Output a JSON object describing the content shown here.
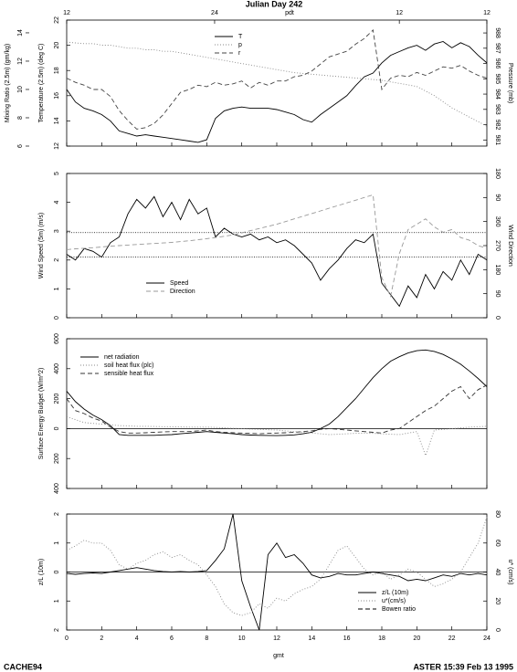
{
  "page": {
    "title": "Julian Day 242",
    "footer_left": "CACHE94",
    "footer_right": "ASTER 15:39 Feb 13 1995",
    "x_label": "gmt",
    "top_axis": {
      "label": "pdt",
      "ticks": [
        {
          "value": 0,
          "label": "12"
        },
        {
          "value": 8.45,
          "label": "24"
        },
        {
          "value": 19,
          "label": "12"
        },
        {
          "value": 24,
          "label": "12"
        }
      ]
    }
  },
  "chart_data": [
    {
      "type": "line",
      "xlim": [
        0,
        24
      ],
      "xticks": [
        0,
        2,
        4,
        6,
        8,
        10,
        12,
        14,
        16,
        18,
        20,
        22,
        24
      ],
      "xtick_labels": false,
      "legend": "top-center",
      "yaxes": [
        {
          "side": "left",
          "label": "Temperature (2.5m) (deg C)",
          "lim": [
            12,
            22
          ],
          "ticks": [
            12,
            14,
            16,
            18,
            20,
            22
          ]
        },
        {
          "side": "right",
          "label": "Pressure (mb)",
          "lim": [
            980.6,
            988.84
          ],
          "ticks": [
            981,
            982,
            983,
            984,
            985,
            986,
            987,
            988
          ]
        },
        {
          "side": "left",
          "label": "Mixing Ratio (2.5m) (gm/kg)",
          "lim": [
            6,
            14.9
          ],
          "ticks": [
            6,
            8,
            10,
            12,
            14
          ]
        }
      ],
      "x": [
        0,
        0.5,
        1,
        1.5,
        2,
        2.5,
        3,
        3.5,
        4,
        4.5,
        5,
        5.5,
        6,
        6.5,
        7,
        7.5,
        8,
        8.5,
        9,
        9.5,
        10,
        10.5,
        11,
        11.5,
        12,
        12.5,
        13,
        13.5,
        14,
        14.5,
        15,
        15.5,
        16,
        16.5,
        17,
        17.5,
        18,
        18.5,
        19,
        19.5,
        20,
        20.5,
        21,
        21.5,
        22,
        22.5,
        23,
        23.5,
        24
      ],
      "series": [
        {
          "name": "T",
          "color": "#000000",
          "style": "solid",
          "axis": 0,
          "values": [
            16.5,
            15.5,
            15.0,
            14.8,
            14.5,
            14.0,
            13.2,
            13.0,
            12.8,
            12.9,
            12.8,
            12.7,
            12.6,
            12.5,
            12.4,
            12.3,
            12.5,
            14.2,
            14.8,
            15.0,
            15.1,
            15.0,
            15.0,
            15.0,
            14.9,
            14.7,
            14.5,
            14.1,
            13.9,
            14.5,
            15.0,
            15.5,
            16.0,
            16.8,
            17.5,
            17.8,
            18.6,
            19.2,
            19.5,
            19.8,
            20.0,
            19.6,
            20.1,
            20.3,
            19.8,
            20.2,
            19.9,
            19.2,
            18.6
          ]
        },
        {
          "name": "p",
          "color": "#888888",
          "style": "dotted",
          "axis": 1,
          "values": [
            987.4,
            987.35,
            987.3,
            987.3,
            987.2,
            987.2,
            987.1,
            987.0,
            987.0,
            986.9,
            986.9,
            986.8,
            986.8,
            986.7,
            986.6,
            986.5,
            986.4,
            986.3,
            986.2,
            986.1,
            986.0,
            985.9,
            985.8,
            985.7,
            985.6,
            985.5,
            985.4,
            985.35,
            985.3,
            985.25,
            985.2,
            985.15,
            985.1,
            985.05,
            985.0,
            984.95,
            984.9,
            984.8,
            984.7,
            984.6,
            984.5,
            984.2,
            983.9,
            983.5,
            983.1,
            982.8,
            982.5,
            982.2,
            981.9
          ]
        },
        {
          "name": "r",
          "color": "#444444",
          "style": "dashed",
          "axis": 2,
          "values": [
            10.8,
            10.5,
            10.3,
            10.0,
            10.0,
            9.5,
            8.5,
            7.8,
            7.2,
            7.3,
            7.6,
            8.2,
            9.0,
            9.8,
            10.0,
            10.3,
            10.2,
            10.5,
            10.3,
            10.4,
            10.6,
            10.1,
            10.5,
            10.3,
            10.6,
            10.6,
            10.9,
            11.0,
            11.3,
            11.8,
            12.3,
            12.5,
            12.7,
            13.2,
            13.6,
            14.2,
            10.0,
            10.8,
            11.0,
            10.9,
            11.2,
            11.0,
            11.3,
            11.6,
            11.5,
            11.7,
            11.3,
            11.0,
            10.8
          ]
        }
      ]
    },
    {
      "type": "line",
      "xlim": [
        0,
        24
      ],
      "xticks": [
        0,
        2,
        4,
        6,
        8,
        10,
        12,
        14,
        16,
        18,
        20,
        22,
        24
      ],
      "xtick_labels": false,
      "legend": "bottom-left",
      "hlines": [
        2.1,
        2.95
      ],
      "yaxes": [
        {
          "side": "left",
          "label": "Wind Speed (5m) (m/s)",
          "lim": [
            0,
            5
          ],
          "ticks": [
            0,
            1,
            2,
            3,
            4,
            5
          ]
        },
        {
          "side": "right",
          "label": "Wind Direction",
          "lim": [
            0,
            540
          ],
          "ticks": [
            0,
            90,
            180,
            270,
            360,
            {
              "value": 450,
              "label": "90"
            },
            {
              "value": 540,
              "label": "180"
            }
          ]
        }
      ],
      "x": [
        0,
        0.5,
        1,
        1.5,
        2,
        2.5,
        3,
        3.5,
        4,
        4.5,
        5,
        5.5,
        6,
        6.5,
        7,
        7.5,
        8,
        8.5,
        9,
        9.5,
        10,
        10.5,
        11,
        11.5,
        12,
        12.5,
        13,
        13.5,
        14,
        14.5,
        15,
        15.5,
        16,
        16.5,
        17,
        17.5,
        18,
        18.5,
        19,
        19.5,
        20,
        20.5,
        21,
        21.5,
        22,
        22.5,
        23,
        23.5,
        24
      ],
      "series": [
        {
          "name": "Speed",
          "color": "#000000",
          "style": "solid",
          "axis": 0,
          "values": [
            2.2,
            2.0,
            2.4,
            2.3,
            2.1,
            2.6,
            2.8,
            3.6,
            4.1,
            3.8,
            4.2,
            3.5,
            4.0,
            3.4,
            4.1,
            3.6,
            3.8,
            2.8,
            3.1,
            2.9,
            2.8,
            2.9,
            2.7,
            2.8,
            2.6,
            2.7,
            2.5,
            2.2,
            1.9,
            1.3,
            1.7,
            2.0,
            2.4,
            2.7,
            2.6,
            2.9,
            1.2,
            0.8,
            0.4,
            1.1,
            0.7,
            1.5,
            1.0,
            1.6,
            1.3,
            2.0,
            1.5,
            2.2,
            2.0
          ]
        },
        {
          "name": "Direction",
          "color": "#999999",
          "style": "dashed",
          "axis": 1,
          "values": [
            255,
            258,
            260,
            262,
            265,
            268,
            270,
            272,
            274,
            276,
            278,
            280,
            282,
            285,
            288,
            292,
            296,
            300,
            305,
            310,
            318,
            326,
            334,
            342,
            350,
            360,
            370,
            380,
            390,
            400,
            410,
            420,
            430,
            440,
            450,
            460,
            150,
            80,
            240,
            330,
            350,
            370,
            340,
            320,
            330,
            300,
            290,
            270,
            260
          ]
        }
      ]
    },
    {
      "type": "line",
      "xlim": [
        0,
        24
      ],
      "xticks": [
        0,
        2,
        4,
        6,
        8,
        10,
        12,
        14,
        16,
        18,
        20,
        22,
        24
      ],
      "xtick_labels": false,
      "legend": "top-left",
      "zero_line": true,
      "yaxes": [
        {
          "side": "left",
          "label": "Surface Energy Budget (W/m^2)",
          "lim": [
            -400,
            600
          ],
          "ticks": [
            {
              "value": -400,
              "label": "400"
            },
            {
              "value": -200,
              "label": "200"
            },
            0,
            200,
            400,
            600
          ]
        }
      ],
      "x": [
        0,
        0.5,
        1,
        1.5,
        2,
        2.5,
        3,
        3.5,
        4,
        4.5,
        5,
        5.5,
        6,
        6.5,
        7,
        7.5,
        8,
        8.5,
        9,
        9.5,
        10,
        10.5,
        11,
        11.5,
        12,
        12.5,
        13,
        13.5,
        14,
        14.5,
        15,
        15.5,
        16,
        16.5,
        17,
        17.5,
        18,
        18.5,
        19,
        19.5,
        20,
        20.5,
        21,
        21.5,
        22,
        22.5,
        23,
        23.5,
        24
      ],
      "series": [
        {
          "name": "net radiation",
          "color": "#000000",
          "style": "solid",
          "axis": 0,
          "values": [
            250,
            180,
            130,
            90,
            60,
            20,
            -40,
            -45,
            -45,
            -45,
            -45,
            -42,
            -40,
            -35,
            -30,
            -25,
            -20,
            -25,
            -30,
            -35,
            -40,
            -43,
            -45,
            -46,
            -47,
            -45,
            -42,
            -35,
            -25,
            0,
            30,
            80,
            140,
            200,
            270,
            340,
            400,
            450,
            480,
            505,
            520,
            525,
            515,
            495,
            465,
            430,
            385,
            335,
            280
          ]
        },
        {
          "name": "soil heat flux (plc)",
          "color": "#888888",
          "style": "dotted",
          "axis": 0,
          "values": [
            80,
            60,
            40,
            35,
            30,
            25,
            20,
            18,
            15,
            15,
            14,
            13,
            12,
            11,
            10,
            10,
            10,
            8,
            5,
            2,
            0,
            -3,
            -5,
            -8,
            -10,
            -15,
            -20,
            -25,
            -30,
            -35,
            -40,
            -38,
            -35,
            -32,
            -30,
            -32,
            -35,
            -38,
            -40,
            -30,
            -20,
            -180,
            -10,
            -5,
            0,
            5,
            10,
            12,
            15
          ]
        },
        {
          "name": "sensible heat flux",
          "color": "#333333",
          "style": "dashed",
          "axis": 0,
          "values": [
            200,
            120,
            100,
            70,
            50,
            10,
            -20,
            -30,
            -30,
            -28,
            -25,
            -22,
            -20,
            -20,
            -20,
            -15,
            -10,
            -20,
            -25,
            -28,
            -30,
            -32,
            -35,
            -32,
            -30,
            -28,
            -25,
            -20,
            -15,
            -5,
            0,
            -5,
            -10,
            -15,
            -20,
            -25,
            -30,
            -10,
            0,
            40,
            80,
            120,
            150,
            200,
            250,
            280,
            200,
            260,
            290
          ]
        }
      ]
    },
    {
      "type": "line",
      "xlim": [
        0,
        24
      ],
      "xticks": [
        0,
        2,
        4,
        6,
        8,
        10,
        12,
        14,
        16,
        18,
        20,
        22,
        24
      ],
      "xtick_labels": true,
      "legend": "bottom-right",
      "zero_line": true,
      "yaxes": [
        {
          "side": "left",
          "label": "z/L (10m)",
          "lim": [
            -2,
            2
          ],
          "ticks": [
            {
              "value": -2,
              "label": "2"
            },
            {
              "value": -1,
              "label": "1"
            },
            0,
            1,
            2
          ]
        },
        {
          "side": "right",
          "label": "u* (cm/s)",
          "lim": [
            0,
            80
          ],
          "ticks": [
            0,
            20,
            40,
            60,
            80
          ]
        }
      ],
      "x": [
        0,
        0.5,
        1,
        1.5,
        2,
        2.5,
        3,
        3.5,
        4,
        4.5,
        5,
        5.5,
        6,
        6.5,
        7,
        7.5,
        8,
        8.5,
        9,
        9.5,
        10,
        10.5,
        11,
        11.5,
        12,
        12.5,
        13,
        13.5,
        14,
        14.5,
        15,
        15.5,
        16,
        16.5,
        17,
        17.5,
        18,
        18.5,
        19,
        19.5,
        20,
        20.5,
        21,
        21.5,
        22,
        22.5,
        23,
        23.5,
        24
      ],
      "series": [
        {
          "name": "z/L (10m)",
          "color": "#000000",
          "style": "solid",
          "axis": 0,
          "values": [
            -0.05,
            -0.08,
            -0.05,
            -0.03,
            -0.05,
            0.0,
            0.05,
            0.1,
            0.15,
            0.1,
            0.05,
            0.02,
            0.0,
            0.02,
            0.0,
            0.02,
            0.05,
            0.4,
            0.8,
            2.0,
            -0.3,
            -1.2,
            -2.0,
            0.6,
            1.0,
            0.5,
            0.6,
            0.3,
            -0.1,
            -0.2,
            -0.15,
            -0.05,
            -0.1,
            -0.1,
            -0.05,
            0.0,
            -0.05,
            -0.1,
            -0.15,
            -0.3,
            -0.25,
            -0.3,
            -0.2,
            -0.1,
            -0.15,
            -0.05,
            -0.1,
            -0.05,
            -0.1
          ]
        },
        {
          "name": "u*(cm/s)",
          "color": "#888888",
          "style": "dotted",
          "axis": 1,
          "values": [
            55,
            58,
            62,
            60,
            60,
            55,
            45,
            42,
            46,
            48,
            52,
            54,
            50,
            52,
            48,
            45,
            38,
            30,
            18,
            12,
            10,
            12,
            18,
            15,
            22,
            20,
            25,
            28,
            30,
            35,
            45,
            55,
            58,
            50,
            42,
            38,
            40,
            35,
            38,
            42,
            40,
            35,
            30,
            32,
            35,
            40,
            50,
            60,
            78
          ]
        }
      ],
      "extra_legend": [
        {
          "name": "Bowen ratio",
          "style": "dashed"
        }
      ]
    }
  ]
}
